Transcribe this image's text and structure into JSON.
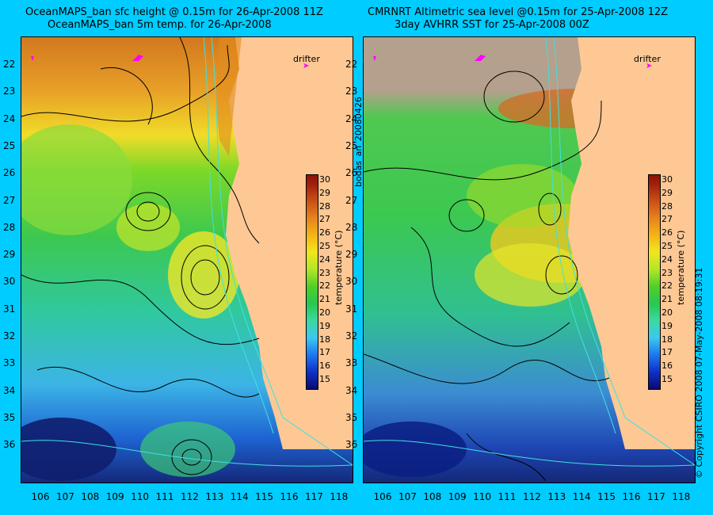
{
  "left_panel": {
    "title_line1": "OceanMAPS_ban sfc height @ 0.15m for 26-Apr-2008 11Z",
    "title_line2": "OceanMAPS_ban 5m temp. for 26-Apr-2008",
    "drifter_label": "drifter"
  },
  "right_panel": {
    "title_line1": "CMRNRT Altimetric sea level  @0.15m  for 25-Apr-2008 12Z",
    "title_line2": "3day AVHRR SST for 25-Apr-2008 00Z",
    "drifter_label": "drifter"
  },
  "center_vertical_text": "bodas_an_20080426",
  "copyright_text": "© Copyright CSIRO 2008   07-May-2008 08:19:31",
  "y_axis_ticks": [
    "22",
    "23",
    "24",
    "25",
    "26",
    "27",
    "28",
    "29",
    "30",
    "31",
    "32",
    "33",
    "34",
    "35",
    "36"
  ],
  "x_axis_ticks": [
    "106",
    "107",
    "108",
    "109",
    "110",
    "111",
    "112",
    "113",
    "114",
    "115",
    "116",
    "117",
    "118"
  ],
  "colorbar": {
    "label": "temperature (°C)",
    "ticks": [
      "30",
      "29",
      "28",
      "27",
      "26",
      "25",
      "24",
      "23",
      "22",
      "21",
      "20",
      "19",
      "18",
      "17",
      "16",
      "15"
    ]
  },
  "colors": {
    "background": "#00ccff",
    "land": "#fdc894",
    "drifter": "#ff00ff",
    "contour_black": "#000000",
    "contour_cyan": "#40e0e0"
  }
}
